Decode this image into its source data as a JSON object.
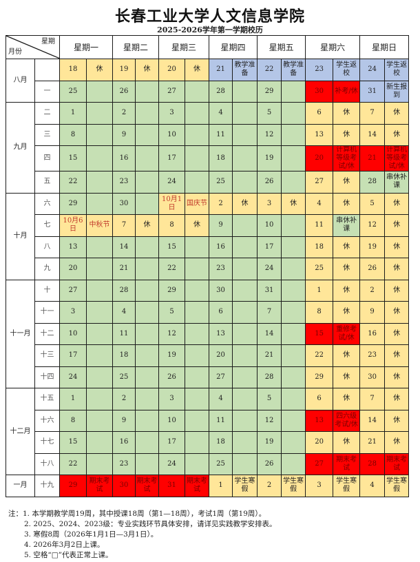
{
  "title": "长春工业大学人文信息学院",
  "subtitle": "2025-2026学年第一学期校历",
  "header": {
    "corner_top": "星期",
    "corner_bottom": "月份",
    "days": [
      "星期一",
      "星期二",
      "星期三",
      "星期四",
      "星期五",
      "星期六",
      "星期日"
    ]
  },
  "colors": {
    "teaching": "#C6E0B4",
    "rest": "#FFE699",
    "prep": "#B4C6E7",
    "exam": "#FF0000",
    "holiday_text": "#C0392B"
  },
  "months": [
    {
      "label": "八月"
    },
    {
      "label": "九月"
    },
    {
      "label": "十月"
    },
    {
      "label": "十一月"
    },
    {
      "label": "十二月"
    },
    {
      "label": "一月"
    }
  ],
  "rows": [
    {
      "week": "",
      "cells": [
        [
          "18",
          "休"
        ],
        [
          "19",
          "休"
        ],
        [
          "20",
          "休"
        ],
        [
          "21",
          "教学准备"
        ],
        [
          "22",
          "教学准备"
        ],
        [
          "23",
          "学生返校"
        ],
        [
          "24",
          "学生返校"
        ]
      ]
    },
    {
      "week": "一",
      "cells": [
        [
          "25",
          ""
        ],
        [
          "26",
          ""
        ],
        [
          "27",
          ""
        ],
        [
          "28",
          ""
        ],
        [
          "29",
          ""
        ],
        [
          "30",
          "补考/休"
        ],
        [
          "31",
          "新生报到"
        ]
      ]
    },
    {
      "week": "二",
      "cells": [
        [
          "1",
          ""
        ],
        [
          "2",
          ""
        ],
        [
          "3",
          ""
        ],
        [
          "4",
          ""
        ],
        [
          "5",
          ""
        ],
        [
          "6",
          "休"
        ],
        [
          "7",
          "休"
        ]
      ]
    },
    {
      "week": "三",
      "cells": [
        [
          "8",
          ""
        ],
        [
          "9",
          ""
        ],
        [
          "10",
          ""
        ],
        [
          "11",
          ""
        ],
        [
          "12",
          ""
        ],
        [
          "13",
          "休"
        ],
        [
          "14",
          "休"
        ]
      ]
    },
    {
      "week": "四",
      "cells": [
        [
          "15",
          ""
        ],
        [
          "16",
          ""
        ],
        [
          "17",
          ""
        ],
        [
          "18",
          ""
        ],
        [
          "19",
          ""
        ],
        [
          "20",
          "计算机等级考试/休"
        ],
        [
          "21",
          "计算机等级考试/休"
        ]
      ]
    },
    {
      "week": "五",
      "cells": [
        [
          "22",
          ""
        ],
        [
          "23",
          ""
        ],
        [
          "24",
          ""
        ],
        [
          "25",
          ""
        ],
        [
          "26",
          ""
        ],
        [
          "27",
          "休"
        ],
        [
          "28",
          "串休补课"
        ]
      ]
    },
    {
      "week": "六",
      "cells": [
        [
          "29",
          ""
        ],
        [
          "30",
          ""
        ],
        [
          "10月1日",
          "国庆节"
        ],
        [
          "2",
          "休"
        ],
        [
          "3",
          "休"
        ],
        [
          "4",
          "休"
        ],
        [
          "5",
          "休"
        ]
      ]
    },
    {
      "week": "七",
      "cells": [
        [
          "10月6日",
          "中秋节"
        ],
        [
          "7",
          "休"
        ],
        [
          "8",
          "休"
        ],
        [
          "9",
          ""
        ],
        [
          "10",
          ""
        ],
        [
          "11",
          "串休补课"
        ],
        [
          "12",
          "休"
        ]
      ]
    },
    {
      "week": "八",
      "cells": [
        [
          "13",
          ""
        ],
        [
          "14",
          ""
        ],
        [
          "15",
          ""
        ],
        [
          "16",
          ""
        ],
        [
          "17",
          ""
        ],
        [
          "18",
          "休"
        ],
        [
          "19",
          "休"
        ]
      ]
    },
    {
      "week": "九",
      "cells": [
        [
          "20",
          ""
        ],
        [
          "21",
          ""
        ],
        [
          "22",
          ""
        ],
        [
          "23",
          ""
        ],
        [
          "24",
          ""
        ],
        [
          "25",
          "休"
        ],
        [
          "26",
          "休"
        ]
      ]
    },
    {
      "week": "十",
      "cells": [
        [
          "27",
          ""
        ],
        [
          "28",
          ""
        ],
        [
          "29",
          ""
        ],
        [
          "30",
          ""
        ],
        [
          "31",
          ""
        ],
        [
          "1",
          "休"
        ],
        [
          "2",
          "休"
        ]
      ]
    },
    {
      "week": "十一",
      "cells": [
        [
          "3",
          ""
        ],
        [
          "4",
          ""
        ],
        [
          "5",
          ""
        ],
        [
          "6",
          ""
        ],
        [
          "7",
          ""
        ],
        [
          "8",
          "休"
        ],
        [
          "9",
          "休"
        ]
      ]
    },
    {
      "week": "十二",
      "cells": [
        [
          "10",
          ""
        ],
        [
          "11",
          ""
        ],
        [
          "12",
          ""
        ],
        [
          "13",
          ""
        ],
        [
          "14",
          ""
        ],
        [
          "15",
          "重修考试/休"
        ],
        [
          "16",
          "休"
        ]
      ]
    },
    {
      "week": "十三",
      "cells": [
        [
          "17",
          ""
        ],
        [
          "18",
          ""
        ],
        [
          "19",
          ""
        ],
        [
          "20",
          ""
        ],
        [
          "21",
          ""
        ],
        [
          "22",
          "休"
        ],
        [
          "23",
          "休"
        ]
      ]
    },
    {
      "week": "十四",
      "cells": [
        [
          "24",
          ""
        ],
        [
          "25",
          ""
        ],
        [
          "26",
          ""
        ],
        [
          "27",
          ""
        ],
        [
          "28",
          ""
        ],
        [
          "29",
          "休"
        ],
        [
          "30",
          "休"
        ]
      ]
    },
    {
      "week": "十五",
      "cells": [
        [
          "1",
          ""
        ],
        [
          "2",
          ""
        ],
        [
          "3",
          ""
        ],
        [
          "4",
          ""
        ],
        [
          "5",
          ""
        ],
        [
          "6",
          "休"
        ],
        [
          "7",
          "休"
        ]
      ]
    },
    {
      "week": "十六",
      "cells": [
        [
          "8",
          ""
        ],
        [
          "9",
          ""
        ],
        [
          "10",
          ""
        ],
        [
          "11",
          ""
        ],
        [
          "12",
          ""
        ],
        [
          "13",
          "四六级考试/休"
        ],
        [
          "14",
          "休"
        ]
      ]
    },
    {
      "week": "十七",
      "cells": [
        [
          "15",
          ""
        ],
        [
          "16",
          ""
        ],
        [
          "17",
          ""
        ],
        [
          "18",
          ""
        ],
        [
          "19",
          ""
        ],
        [
          "20",
          "休"
        ],
        [
          "21",
          "休"
        ]
      ]
    },
    {
      "week": "十八",
      "cells": [
        [
          "22",
          ""
        ],
        [
          "23",
          ""
        ],
        [
          "24",
          ""
        ],
        [
          "25",
          ""
        ],
        [
          "26",
          ""
        ],
        [
          "27",
          "期末考试"
        ],
        [
          "28",
          "期末考试"
        ]
      ]
    },
    {
      "week": "十九",
      "cells": [
        [
          "29",
          "期末考试"
        ],
        [
          "30",
          "期末考试"
        ],
        [
          "31",
          "期末考试"
        ],
        [
          "1",
          "学生寒假"
        ],
        [
          "2",
          "学生寒假"
        ],
        [
          "3",
          "学生寒假"
        ],
        [
          "4",
          "学生寒假"
        ]
      ]
    }
  ],
  "notes": {
    "prefix": "注：",
    "items": [
      "1. 本学期教学周19周，其中授课18周（第1—18周），考试1周（第19周）。",
      "2. 2025、2024、2023级：专业实践环节具体安排，请详见实践教学安排表。",
      "3. 寒假8周（2026年1月1日—3月1日）。",
      "4. 2026年3月2日上课。",
      "5. 空格“□”代表正常上课。"
    ]
  }
}
